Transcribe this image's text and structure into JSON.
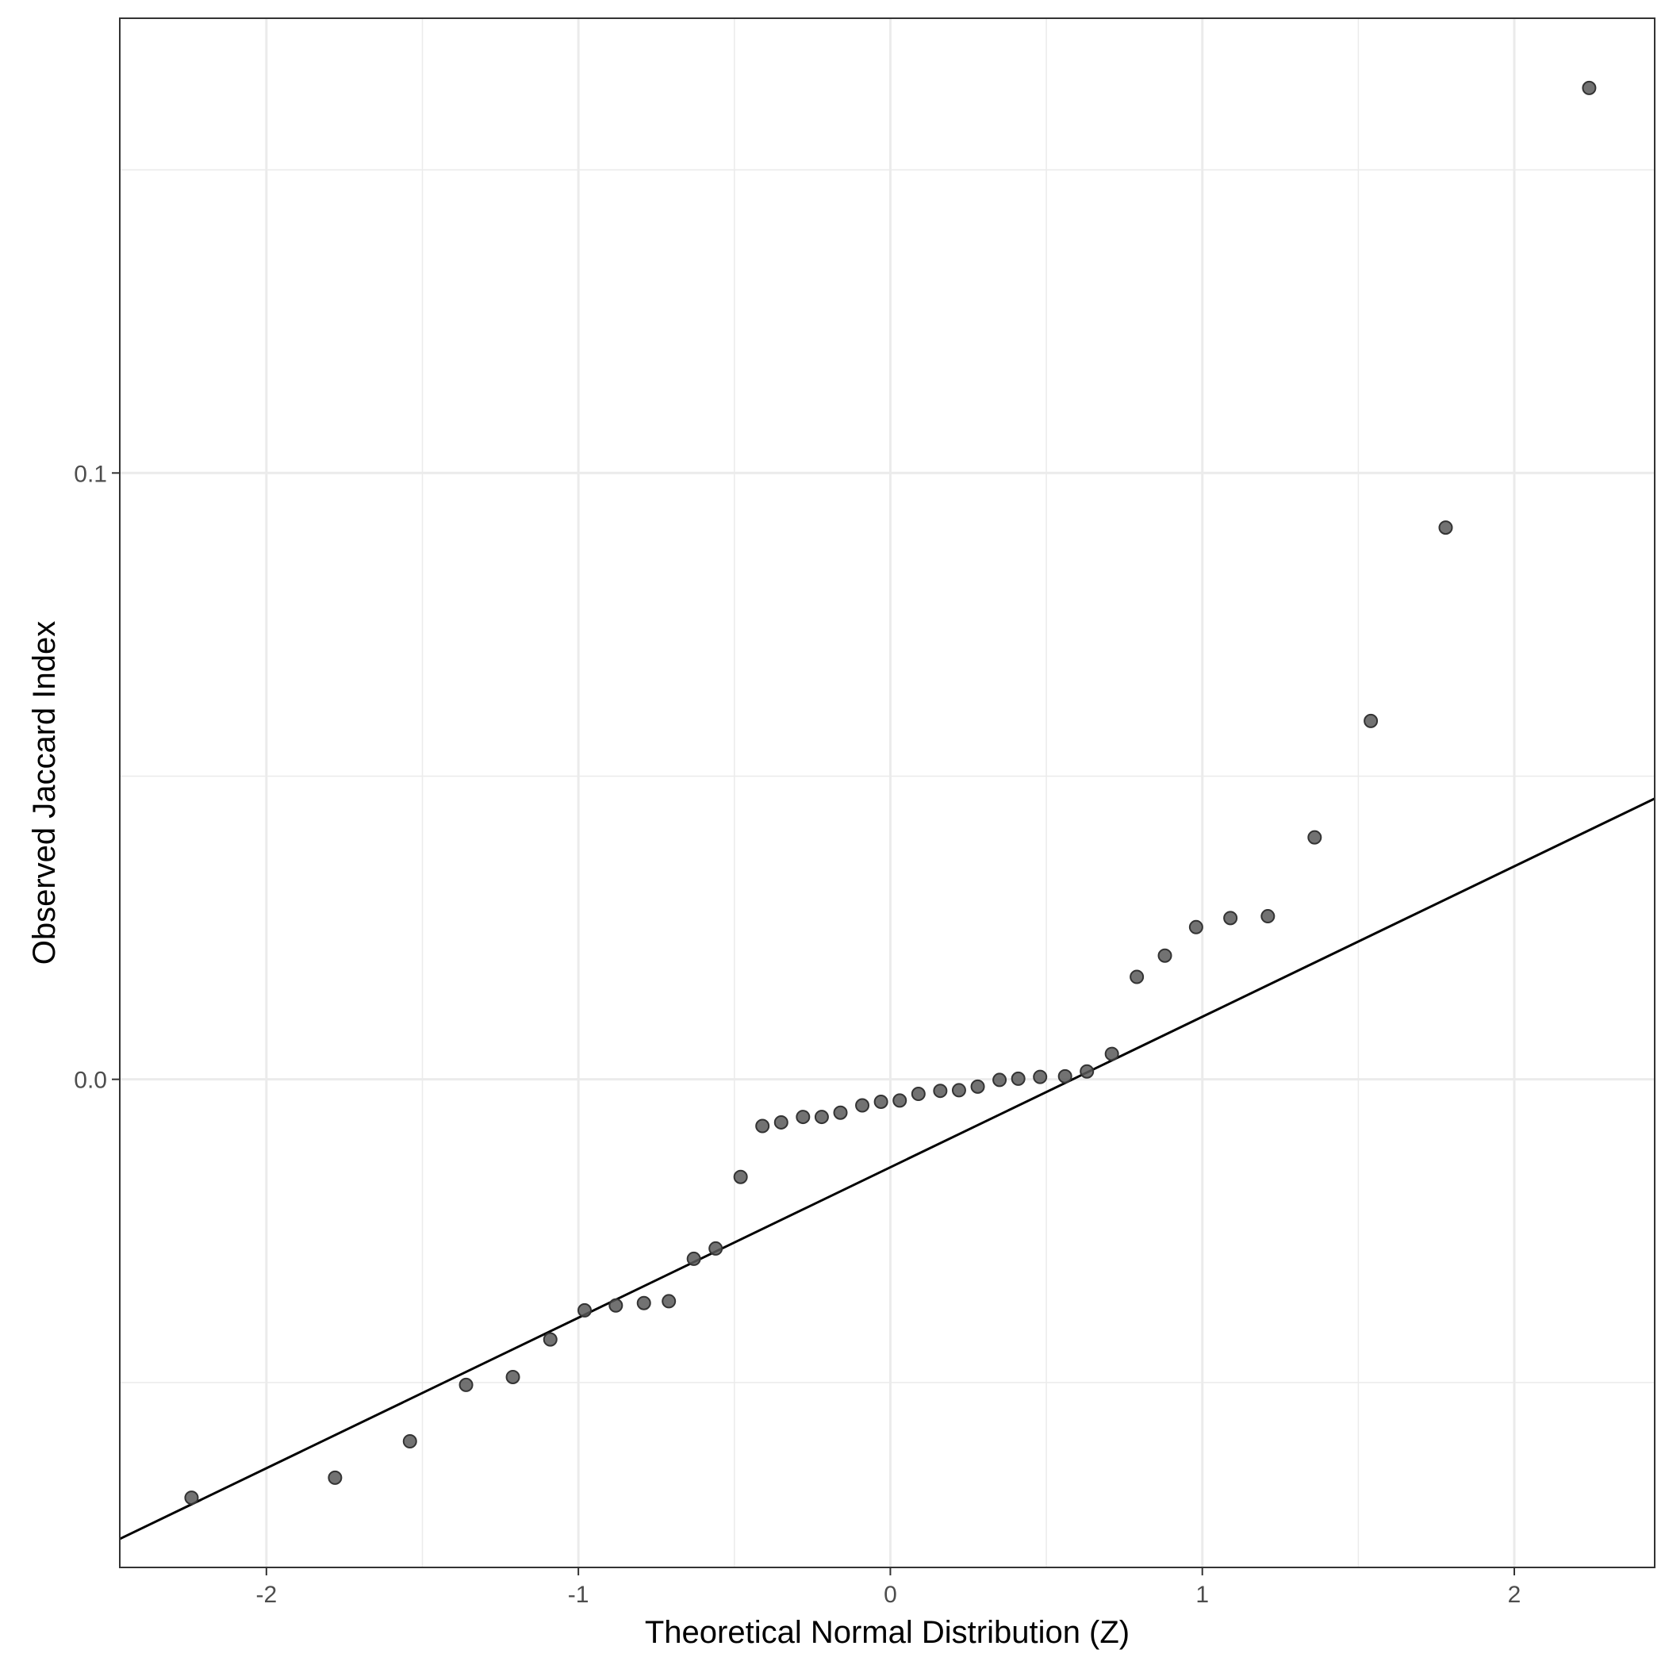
{
  "chart_data": {
    "type": "scatter",
    "title": "",
    "xlabel": "Theoretical Normal Distribution (Z)",
    "ylabel": "Observed Jaccard Index",
    "xlim": [
      -2.47,
      2.45
    ],
    "ylim": [
      -0.0805,
      0.175
    ],
    "x_major_ticks": [
      -2,
      -1,
      0,
      1,
      2
    ],
    "x_tick_labels": [
      "-2",
      "-1",
      "0",
      "1",
      "2"
    ],
    "x_minor_ticks": [
      -1.5,
      -0.5,
      0.5,
      1.5
    ],
    "y_major_ticks": [
      0.0,
      0.1
    ],
    "y_tick_labels": [
      "0.0",
      "0.1"
    ],
    "y_minor_ticks": [
      -0.05,
      0.05,
      0.15
    ],
    "grid": true,
    "colors": {
      "points": "#595959",
      "point_outline": "#333333",
      "reference_line": "#000000",
      "grid": "#ebebeb",
      "panel_border": "#333333"
    },
    "series": [
      {
        "x": [
          -2.24,
          -1.78,
          -1.54,
          -1.36,
          -1.21,
          -1.09,
          -0.98,
          -0.88,
          -0.79,
          -0.71,
          -0.63,
          -0.56,
          -0.48,
          -0.41,
          -0.35,
          -0.28,
          -0.22,
          -0.16,
          -0.09,
          -0.03,
          0.03,
          0.09,
          0.16,
          0.22,
          0.28,
          0.35,
          0.41,
          0.48,
          0.56,
          0.63,
          0.71,
          0.79,
          0.88,
          0.98,
          1.09,
          1.21,
          1.36,
          1.54,
          1.78,
          2.24
        ],
        "y": [
          -0.069,
          -0.0657,
          -0.0597,
          -0.0504,
          -0.0491,
          -0.0429,
          -0.0381,
          -0.0373,
          -0.0369,
          -0.0366,
          -0.0296,
          -0.0279,
          -0.0161,
          -0.0077,
          -0.0071,
          -0.0062,
          -0.0062,
          -0.0055,
          -0.0043,
          -0.0037,
          -0.0035,
          -0.0024,
          -0.0019,
          -0.0018,
          -0.0012,
          -0.0001,
          0.0001,
          0.0004,
          0.0005,
          0.0013,
          0.0042,
          0.0169,
          0.0204,
          0.0251,
          0.0266,
          0.0269,
          0.0399,
          0.0591,
          0.091,
          0.1635
        ]
      }
    ],
    "reference_line": {
      "x": [
        -2.47,
        2.45
      ],
      "y": [
        -0.0758,
        0.0463
      ]
    }
  }
}
